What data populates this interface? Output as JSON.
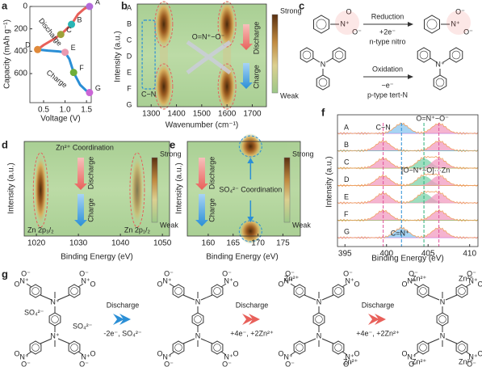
{
  "labels": [
    "a",
    "b",
    "c",
    "d",
    "e",
    "f",
    "g"
  ],
  "atoms": {
    "N": "N",
    "Np": "N⁺",
    "O": "O",
    "Om": "O⁻"
  },
  "a": {
    "ylabel": "Capacity (mAh g⁻¹)",
    "xlabel": "Voltage (V)",
    "xlim": [
      0.18,
      1.61
    ],
    "ylim": [
      0,
      860
    ],
    "xticks": [
      0.5,
      {
        "value": 1,
        "label": "1.0"
      },
      1.5
    ],
    "yticks": [
      0,
      200,
      400,
      600
    ],
    "discharge": {
      "name": "Discharge",
      "color": "#e8605a",
      "x": [
        1.57,
        1.45,
        1.3,
        1.15,
        1.0,
        0.9,
        0.7,
        0.5,
        0.36
      ],
      "y": [
        0,
        20,
        70,
        160,
        215,
        250,
        300,
        345,
        385
      ]
    },
    "charge": {
      "name": "Charge",
      "color": "#2b8fd6",
      "x": [
        0.36,
        0.6,
        0.85,
        1.0,
        1.1,
        1.2,
        1.35,
        1.5,
        1.57
      ],
      "y": [
        385,
        395,
        402,
        410,
        470,
        590,
        700,
        755,
        770
      ]
    },
    "points": {
      "labels": [
        "A",
        "B",
        "C",
        "D",
        "E",
        "F",
        "G"
      ],
      "colors": [
        "#b36ad9",
        "#29b5b5",
        "#9da13a",
        "#e08a3a",
        "#e99ab0",
        "#6fae3a",
        "#c966d6"
      ],
      "x": [
        1.57,
        1.15,
        0.9,
        0.36,
        1.0,
        1.2,
        1.57
      ],
      "y": [
        0,
        160,
        250,
        385,
        410,
        590,
        770
      ]
    }
  },
  "b": {
    "ylabel": "Intensity (a.u.)",
    "xlabel": "Wavenumber (cm⁻¹)",
    "xlim": [
      1245,
      1756
    ],
    "xticks": [
      1300,
      1400,
      1500,
      1600,
      1700
    ],
    "rows": [
      "A",
      "B",
      "C",
      "D",
      "E",
      "F",
      "G"
    ],
    "row_colors": [
      "#b36ad9",
      "#29b5b5",
      "#9da13a",
      "#e08a3a",
      "#e99ab0",
      "#6fae3a",
      "#c966d6"
    ],
    "bands": [
      1350,
      1600
    ],
    "cn_band": 1290,
    "cn": "C−N",
    "nitro": "O=N⁺−O⁻",
    "discharge": "Discharge",
    "charge": "Charge",
    "strong": "Strong",
    "weak": "Weak"
  },
  "c": {
    "reduction": "Reduction",
    "reduction_e": "+2e⁻",
    "reduction_type": "n-type nitro",
    "oxidation": "Oxidation",
    "oxidation_e": "−e⁻",
    "oxidation_type": "p-type tert-N"
  },
  "d": {
    "ylabel": "Intensity (a.u.)",
    "xlabel": "Binding Energy (eV)",
    "xlim": [
      1017.1,
      1051.7
    ],
    "xticks": [
      1020,
      1030,
      1040,
      1050
    ],
    "bands": [
      1021,
      1044
    ],
    "title": "Zn²⁺ Coordination",
    "peak_labels": [
      "Zn 2p₃/₂",
      "Zn 2p₁/₂"
    ],
    "discharge": "Discharge",
    "charge": "Charge",
    "strong": "Strong",
    "weak": "Weak"
  },
  "e": {
    "ylabel": "Intensity (a.u.)",
    "xlabel": "Binding Energy (eV)",
    "xlim": [
      155.8,
      178.5
    ],
    "xticks": [
      160,
      165,
      170,
      175
    ],
    "bands": [
      168.5
    ],
    "title": "SO₄²⁻ Coordination",
    "discharge": "Discharge",
    "charge": "Charge",
    "strong": "Strong",
    "weak": "Weak"
  },
  "f": {
    "ylabel": "Intensity (a.u.)",
    "xlabel": "Binding Energy (eV)",
    "xlim": [
      394.1,
      411.0
    ],
    "xticks": [
      395,
      400,
      405,
      410
    ],
    "rows": [
      {
        "label": "A",
        "color": "#b36ad9",
        "peaks": [
          401.8,
          406.3
        ],
        "peak_colors": [
          "#8ac6ef",
          "#f29bc0"
        ]
      },
      {
        "label": "B",
        "color": "#29b5b5",
        "peaks": [
          399.6,
          406.3
        ],
        "peak_colors": [
          "#f29bc0",
          "#f29bc0"
        ]
      },
      {
        "label": "C",
        "color": "#9da13a",
        "peaks": [
          399.6,
          404.5,
          406.3
        ],
        "peak_colors": [
          "#f29bc0",
          "#7cd3a9",
          "#f29bc0"
        ]
      },
      {
        "label": "D",
        "color": "#e08a3a",
        "peaks": [
          399.6,
          404.5,
          406.3
        ],
        "peak_colors": [
          "#f29bc0",
          "#7cd3a9",
          "#f29bc0"
        ]
      },
      {
        "label": "E",
        "color": "#e99ab0",
        "peaks": [
          399.6,
          404.5,
          406.3
        ],
        "peak_colors": [
          "#f29bc0",
          "#7cd3a9",
          "#f29bc0"
        ]
      },
      {
        "label": "F",
        "color": "#6fae3a",
        "peaks": [
          399.6,
          406.3
        ],
        "peak_colors": [
          "#f29bc0",
          "#f29bc0"
        ]
      },
      {
        "label": "G",
        "color": "#c966d6",
        "peaks": [
          401.8,
          406.3
        ],
        "peak_colors": [
          "#8ac6ef",
          "#f29bc0"
        ]
      }
    ],
    "guides": [
      399.6,
      401.8,
      404.5,
      406.3
    ],
    "guide_colors": [
      "#e0509a",
      "#2b8fd6",
      "#2bb07a",
      "#e0509a"
    ],
    "nitro": "O=N⁺−O⁻",
    "cn": "C−N",
    "zn": "[O−N⁺−O]···Zn",
    "cnp": "C=N⁺"
  },
  "g": {
    "step1": "Discharge",
    "step1_e": "-2e⁻, SO₄²⁻",
    "step2": "Discharge",
    "step2_e": "+4e⁻, +2Zn²⁺",
    "step3": "Discharge",
    "step3_e": "+4e⁻, +2Zn²⁺",
    "so4": "SO₄²⁻",
    "zn": "Zn²⁺"
  }
}
